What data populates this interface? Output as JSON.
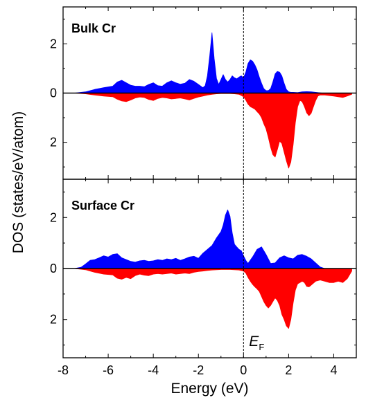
{
  "figure": {
    "ylabel": "DOS (states/eV/atom)",
    "xlabel": "Energy (eV)",
    "fermi_label": "E",
    "fermi_sub": "F",
    "colors": {
      "spin_up": "#0000ff",
      "spin_down": "#ff0000",
      "axis": "#000000",
      "fermi_line": "#000000"
    }
  },
  "chart_data": [
    {
      "type": "area",
      "title": "Bulk Cr",
      "xlabel": "Energy (eV)",
      "ylabel": "DOS (states/eV/atom)",
      "xlim": [
        -8,
        5
      ],
      "ylim": [
        -3.5,
        3.5
      ],
      "xticks": [
        -8,
        -6,
        -4,
        -2,
        0,
        2,
        4
      ],
      "yticks": [
        {
          "value": 2,
          "label": "2"
        },
        {
          "value": 0,
          "label": "0"
        },
        {
          "value": -2,
          "label": "2"
        }
      ],
      "fermi_energy": 0,
      "series": [
        {
          "color": "#0000ff",
          "x": [
            -7.5,
            -7.0,
            -6.6,
            -6.2,
            -5.8,
            -5.6,
            -5.4,
            -5.2,
            -5.0,
            -4.8,
            -4.6,
            -4.4,
            -4.2,
            -4.0,
            -3.8,
            -3.6,
            -3.4,
            -3.2,
            -3.0,
            -2.8,
            -2.6,
            -2.4,
            -2.2,
            -2.0,
            -1.8,
            -1.7,
            -1.6,
            -1.5,
            -1.4,
            -1.3,
            -1.2,
            -1.1,
            -1.0,
            -0.9,
            -0.8,
            -0.7,
            -0.6,
            -0.5,
            -0.4,
            -0.3,
            -0.2,
            -0.1,
            0.0,
            0.1,
            0.2,
            0.3,
            0.4,
            0.5,
            0.6,
            0.7,
            0.8,
            0.9,
            1.0,
            1.1,
            1.2,
            1.3,
            1.4,
            1.5,
            1.6,
            1.7,
            1.8,
            1.9,
            2.0,
            2.1,
            2.2,
            2.4,
            2.6,
            2.8,
            3.0,
            3.2,
            3.5,
            4.0
          ],
          "values": [
            0.0,
            0.05,
            0.15,
            0.22,
            0.28,
            0.45,
            0.52,
            0.42,
            0.32,
            0.28,
            0.28,
            0.26,
            0.35,
            0.42,
            0.3,
            0.28,
            0.42,
            0.5,
            0.42,
            0.36,
            0.4,
            0.55,
            0.48,
            0.35,
            0.22,
            0.3,
            0.7,
            1.5,
            2.45,
            1.4,
            0.6,
            0.35,
            0.55,
            0.75,
            0.55,
            0.45,
            0.55,
            0.7,
            0.62,
            0.58,
            0.65,
            0.7,
            0.62,
            0.85,
            1.2,
            1.35,
            1.3,
            1.15,
            0.95,
            0.65,
            0.4,
            0.18,
            0.1,
            0.1,
            0.18,
            0.45,
            0.78,
            0.88,
            0.85,
            0.7,
            0.4,
            0.15,
            0.05,
            0.03,
            0.03,
            0.02,
            0.05,
            0.06,
            0.05,
            0.03,
            0.0,
            0.0
          ]
        },
        {
          "color": "#ff0000",
          "x": [
            -7.5,
            -7.0,
            -6.6,
            -6.2,
            -5.8,
            -5.6,
            -5.4,
            -5.2,
            -5.0,
            -4.8,
            -4.6,
            -4.4,
            -4.2,
            -4.0,
            -3.8,
            -3.6,
            -3.4,
            -3.2,
            -3.0,
            -2.8,
            -2.6,
            -2.4,
            -2.2,
            -2.0,
            -1.8,
            -1.6,
            -1.4,
            -1.2,
            -1.0,
            -0.8,
            -0.6,
            -0.4,
            -0.2,
            0.0,
            0.1,
            0.2,
            0.3,
            0.4,
            0.5,
            0.6,
            0.7,
            0.8,
            0.9,
            1.0,
            1.1,
            1.2,
            1.3,
            1.4,
            1.5,
            1.6,
            1.7,
            1.8,
            1.9,
            2.0,
            2.1,
            2.2,
            2.3,
            2.4,
            2.5,
            2.6,
            2.7,
            2.8,
            2.9,
            3.0,
            3.1,
            3.2,
            3.3,
            3.4,
            3.6,
            3.8,
            4.0,
            4.2,
            4.4,
            4.6,
            4.8
          ],
          "values": [
            0.0,
            -0.03,
            -0.08,
            -0.12,
            -0.15,
            -0.25,
            -0.32,
            -0.35,
            -0.28,
            -0.2,
            -0.16,
            -0.18,
            -0.26,
            -0.3,
            -0.22,
            -0.18,
            -0.2,
            -0.24,
            -0.22,
            -0.2,
            -0.24,
            -0.28,
            -0.22,
            -0.16,
            -0.12,
            -0.08,
            -0.05,
            -0.03,
            -0.02,
            -0.02,
            -0.02,
            -0.03,
            -0.05,
            -0.15,
            -0.28,
            -0.45,
            -0.55,
            -0.6,
            -0.65,
            -0.75,
            -0.85,
            -1.0,
            -1.25,
            -1.45,
            -1.8,
            -2.2,
            -2.5,
            -2.6,
            -2.3,
            -1.95,
            -2.05,
            -2.4,
            -2.75,
            -3.05,
            -2.8,
            -2.1,
            -1.2,
            -0.55,
            -0.3,
            -0.35,
            -0.55,
            -0.8,
            -0.92,
            -0.82,
            -0.55,
            -0.3,
            -0.12,
            -0.08,
            -0.08,
            -0.1,
            -0.12,
            -0.15,
            -0.18,
            -0.12,
            -0.05
          ]
        }
      ]
    },
    {
      "type": "area",
      "title": "Surface Cr",
      "xlabel": "Energy (eV)",
      "ylabel": "DOS (states/eV/atom)",
      "xlim": [
        -8,
        5
      ],
      "ylim": [
        -3.5,
        3.5
      ],
      "xticks": [
        -8,
        -6,
        -4,
        -2,
        0,
        2,
        4
      ],
      "yticks": [
        {
          "value": 2,
          "label": "2"
        },
        {
          "value": 0,
          "label": "0"
        },
        {
          "value": -2,
          "label": "2"
        }
      ],
      "fermi_energy": 0,
      "series": [
        {
          "color": "#0000ff",
          "x": [
            -7.5,
            -7.2,
            -7.0,
            -6.8,
            -6.6,
            -6.4,
            -6.2,
            -6.0,
            -5.8,
            -5.6,
            -5.4,
            -5.2,
            -5.0,
            -4.8,
            -4.6,
            -4.4,
            -4.2,
            -4.0,
            -3.8,
            -3.6,
            -3.4,
            -3.2,
            -3.0,
            -2.8,
            -2.6,
            -2.4,
            -2.2,
            -2.0,
            -1.8,
            -1.6,
            -1.4,
            -1.2,
            -1.0,
            -0.9,
            -0.8,
            -0.7,
            -0.6,
            -0.5,
            -0.4,
            -0.3,
            -0.2,
            -0.1,
            0.0,
            0.1,
            0.2,
            0.4,
            0.6,
            0.8,
            1.0,
            1.2,
            1.4,
            1.6,
            1.8,
            2.0,
            2.2,
            2.4,
            2.6,
            2.8,
            3.0,
            3.2,
            3.4,
            3.6
          ],
          "values": [
            0.0,
            0.05,
            0.18,
            0.32,
            0.35,
            0.42,
            0.5,
            0.45,
            0.55,
            0.58,
            0.42,
            0.35,
            0.28,
            0.25,
            0.3,
            0.32,
            0.28,
            0.3,
            0.35,
            0.32,
            0.38,
            0.35,
            0.4,
            0.32,
            0.38,
            0.45,
            0.48,
            0.4,
            0.6,
            0.75,
            0.9,
            1.2,
            1.45,
            1.7,
            2.1,
            2.3,
            2.05,
            1.4,
            0.95,
            0.85,
            0.75,
            0.7,
            0.5,
            0.32,
            0.2,
            0.45,
            0.75,
            0.85,
            0.55,
            0.2,
            0.22,
            0.42,
            0.5,
            0.42,
            0.38,
            0.52,
            0.55,
            0.48,
            0.38,
            0.22,
            0.06,
            0.0
          ]
        },
        {
          "color": "#ff0000",
          "x": [
            -7.5,
            -7.0,
            -6.6,
            -6.2,
            -5.8,
            -5.6,
            -5.4,
            -5.2,
            -5.0,
            -4.8,
            -4.6,
            -4.4,
            -4.2,
            -4.0,
            -3.8,
            -3.6,
            -3.4,
            -3.2,
            -3.0,
            -2.8,
            -2.6,
            -2.4,
            -2.2,
            -2.0,
            -1.8,
            -1.6,
            -1.4,
            -1.2,
            -1.0,
            -0.8,
            -0.6,
            -0.4,
            -0.2,
            0.0,
            0.1,
            0.2,
            0.3,
            0.4,
            0.5,
            0.6,
            0.7,
            0.8,
            0.9,
            1.0,
            1.1,
            1.2,
            1.3,
            1.4,
            1.5,
            1.6,
            1.7,
            1.8,
            1.9,
            2.0,
            2.1,
            2.2,
            2.3,
            2.4,
            2.5,
            2.6,
            2.7,
            2.8,
            2.9,
            3.0,
            3.2,
            3.4,
            3.6,
            3.8,
            4.0,
            4.2,
            4.4,
            4.6,
            4.8
          ],
          "values": [
            0.0,
            -0.05,
            -0.15,
            -0.22,
            -0.25,
            -0.38,
            -0.42,
            -0.35,
            -0.4,
            -0.28,
            -0.22,
            -0.26,
            -0.28,
            -0.22,
            -0.2,
            -0.22,
            -0.2,
            -0.18,
            -0.22,
            -0.2,
            -0.18,
            -0.2,
            -0.15,
            -0.12,
            -0.1,
            -0.08,
            -0.06,
            -0.05,
            -0.04,
            -0.04,
            -0.04,
            -0.05,
            -0.06,
            -0.1,
            -0.18,
            -0.35,
            -0.5,
            -0.62,
            -0.72,
            -0.8,
            -0.9,
            -1.1,
            -1.3,
            -1.45,
            -1.55,
            -1.45,
            -1.3,
            -1.15,
            -1.25,
            -1.45,
            -1.8,
            -2.0,
            -2.25,
            -2.35,
            -2.0,
            -1.35,
            -0.85,
            -0.6,
            -0.55,
            -0.5,
            -0.55,
            -0.7,
            -0.72,
            -0.65,
            -0.5,
            -0.45,
            -0.5,
            -0.55,
            -0.55,
            -0.5,
            -0.55,
            -0.4,
            -0.1
          ]
        }
      ]
    }
  ]
}
